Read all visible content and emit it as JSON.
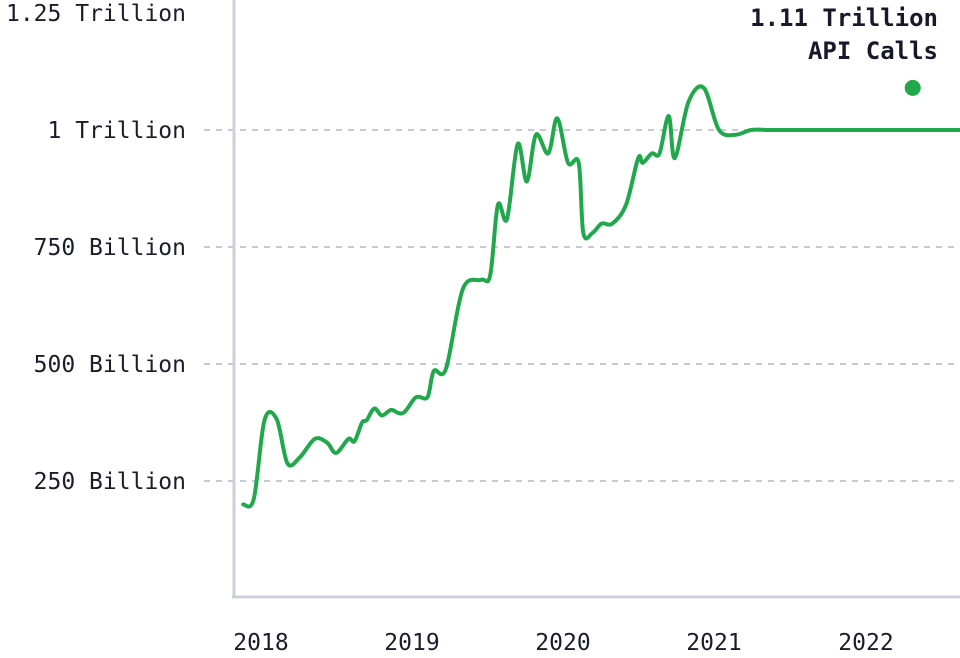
{
  "chart_data": {
    "type": "line",
    "title": "",
    "xlabel": "",
    "ylabel": "",
    "x_ticks": [
      "2018",
      "2019",
      "2020",
      "2021",
      "2022"
    ],
    "y_ticks": [
      {
        "value": 250,
        "label": "250 Billion"
      },
      {
        "value": 500,
        "label": "500 Billion"
      },
      {
        "value": 750,
        "label": "750 Billion"
      },
      {
        "value": 1000,
        "label": "1 Trillion"
      },
      {
        "value": 1250,
        "label": "1.25 Trillion"
      }
    ],
    "ylim": [
      0,
      1250
    ],
    "xlim": [
      2017.97,
      2022.73
    ],
    "grid": true,
    "line_color": "#22a84c",
    "series": [
      {
        "name": "",
        "x": [
          2018.03,
          2018.1,
          2018.17,
          2018.25,
          2018.32,
          2018.4,
          2018.5,
          2018.58,
          2018.64,
          2018.72,
          2018.76,
          2018.81,
          2018.84,
          2018.89,
          2018.94,
          2019.0,
          2019.05,
          2019.09,
          2019.15,
          2019.18,
          2019.24,
          2019.28,
          2019.36,
          2019.47,
          2019.59,
          2019.65,
          2019.7,
          2019.76,
          2019.83,
          2019.89,
          2019.95,
          2020.03,
          2020.09,
          2020.16,
          2020.23,
          2020.26,
          2020.32,
          2020.38,
          2020.45,
          2020.54,
          2020.62,
          2020.65,
          2020.71,
          2020.76,
          2020.82,
          2020.86,
          2020.95,
          2021.05,
          2021.15,
          2021.26,
          2021.36,
          2021.48,
          2021.58,
          2021.66,
          2021.74,
          2021.8,
          2021.84,
          2021.89,
          2021.94,
          2022.02,
          2022.1,
          2022.17,
          2022.23,
          2022.3,
          2022.4,
          2022.48,
          2022.57,
          2022.65,
          2022.73
        ],
        "y": [
          200,
          212,
          380,
          382,
          288,
          300,
          340,
          332,
          310,
          340,
          335,
          375,
          380,
          405,
          390,
          402,
          395,
          398,
          425,
          430,
          430,
          485,
          490,
          660,
          680,
          690,
          840,
          810,
          970,
          890,
          990,
          950,
          1025,
          930,
          930,
          780,
          780,
          800,
          800,
          840,
          940,
          930,
          950,
          950,
          1030,
          940,
          1060,
          1090,
          1000,
          990,
          1000,
          1000,
          1000,
          1000,
          1000,
          1000,
          1000,
          1000,
          1000,
          1000,
          1000,
          1000,
          1000,
          1000,
          1000,
          1000,
          1000,
          1000,
          1000
        ],
        "annotation": {
          "text_line1": "1.11 Trillion",
          "text_line2": "API Calls",
          "x": 2022.42,
          "y": 1090
        }
      }
    ]
  }
}
